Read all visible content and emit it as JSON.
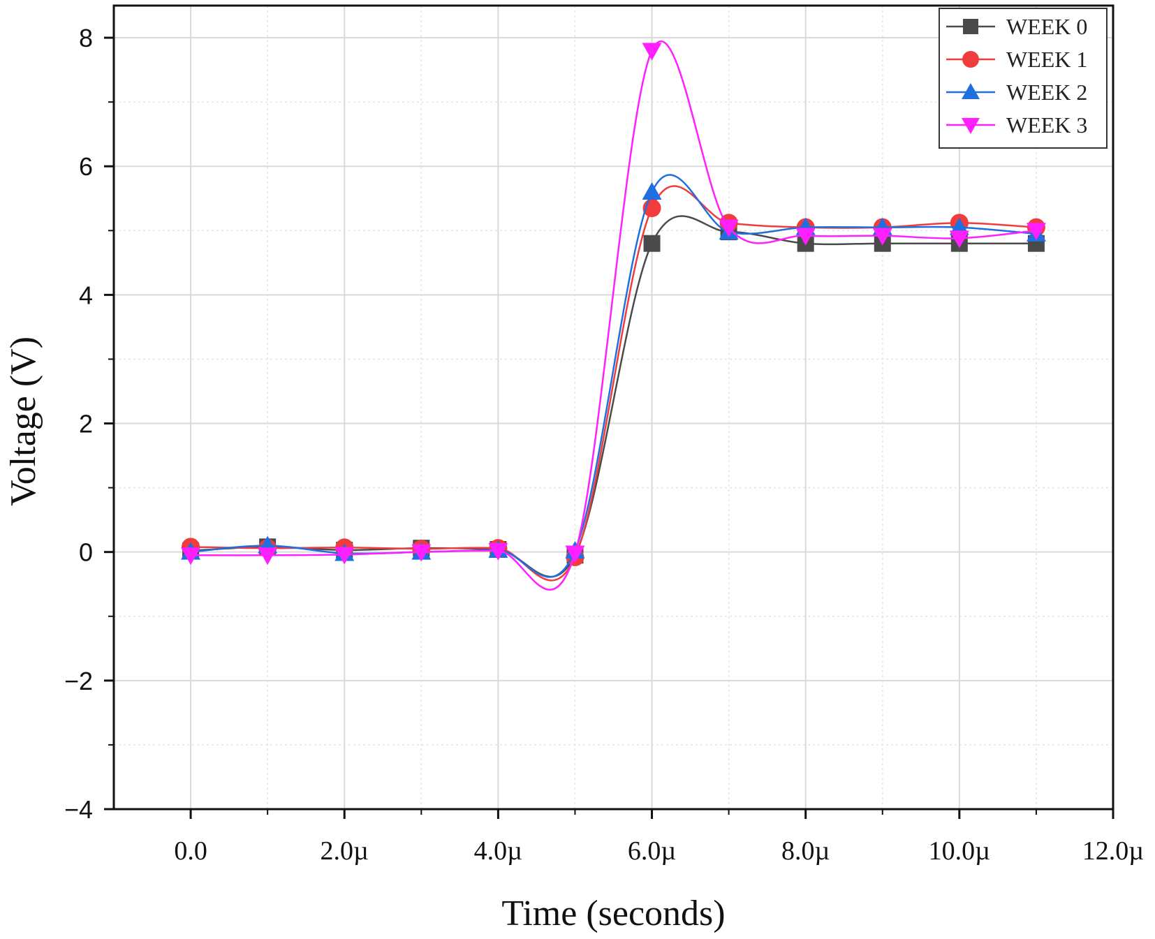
{
  "chart_data": {
    "type": "line",
    "xlabel": "Time (seconds)",
    "ylabel": "Voltage (V)",
    "xlim": [
      -1.0,
      12.0
    ],
    "ylim": [
      -4,
      8.5
    ],
    "x_unit_note": "x values in microseconds",
    "xticks": [
      {
        "value": 0,
        "label": "0.0"
      },
      {
        "value": 2,
        "label": "2.0µ"
      },
      {
        "value": 4,
        "label": "4.0µ"
      },
      {
        "value": 6,
        "label": "6.0µ"
      },
      {
        "value": 8,
        "label": "8.0µ"
      },
      {
        "value": 10,
        "label": "10.0µ"
      },
      {
        "value": 12,
        "label": "12.0µ"
      }
    ],
    "yticks": [
      {
        "value": -4,
        "label": "−4"
      },
      {
        "value": -2,
        "label": "−2"
      },
      {
        "value": 0,
        "label": "0"
      },
      {
        "value": 2,
        "label": "2"
      },
      {
        "value": 4,
        "label": "4"
      },
      {
        "value": 6,
        "label": "6"
      },
      {
        "value": 8,
        "label": "8"
      }
    ],
    "grid": true,
    "legend_position": "top-right",
    "x": [
      0,
      1,
      2,
      3,
      4,
      5,
      6,
      7,
      8,
      9,
      10,
      11
    ],
    "series": [
      {
        "name": "WEEK 0",
        "color": "#4a4a4a",
        "marker": "square",
        "values": [
          0.02,
          0.08,
          0.03,
          0.06,
          0.04,
          -0.05,
          4.8,
          4.98,
          4.8,
          4.8,
          4.8,
          4.8
        ]
      },
      {
        "name": "WEEK 1",
        "color": "#f03c3c",
        "marker": "circle",
        "values": [
          0.08,
          0.06,
          0.07,
          0.05,
          0.06,
          -0.08,
          5.35,
          5.12,
          5.05,
          5.05,
          5.12,
          5.05
        ]
      },
      {
        "name": "WEEK 2",
        "color": "#1f6fe0",
        "marker": "triangle-up",
        "values": [
          0.0,
          0.1,
          -0.02,
          0.0,
          0.03,
          0.02,
          5.6,
          4.98,
          5.05,
          5.05,
          5.05,
          4.95
        ]
      },
      {
        "name": "WEEK 3",
        "color": "#ff1fff",
        "marker": "triangle-down",
        "values": [
          -0.05,
          -0.05,
          -0.04,
          0.0,
          0.02,
          -0.02,
          7.8,
          5.05,
          4.92,
          4.92,
          4.88,
          5.0
        ]
      }
    ]
  }
}
